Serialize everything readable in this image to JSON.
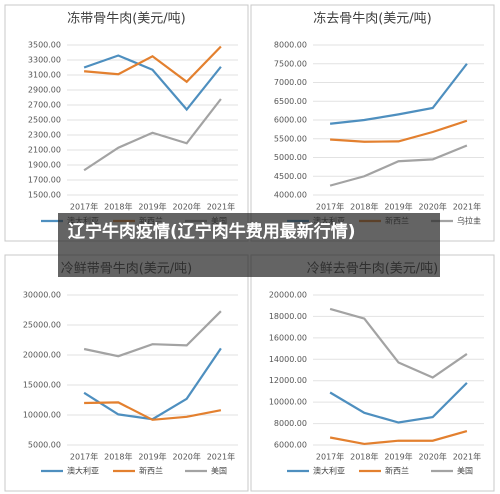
{
  "banner": "辽宁牛肉疫情(辽宁肉牛费用最新行情)",
  "chart_data": [
    {
      "type": "line",
      "title": "冻带骨牛肉(美元/吨)",
      "categories": [
        "2017年",
        "2018年",
        "2019年",
        "2020年",
        "2021年"
      ],
      "ylim": [
        1500,
        3500
      ],
      "yticks": [
        {
          "value": 1500,
          "label": "1500.00"
        },
        {
          "value": 1700,
          "label": "1700.00"
        },
        {
          "value": 1900,
          "label": "1900.00"
        },
        {
          "value": 2100,
          "label": "2100.00"
        },
        {
          "value": 2300,
          "label": "2300.00"
        },
        {
          "value": 2500,
          "label": "2500.00"
        },
        {
          "value": 2700,
          "label": "2700.00"
        },
        {
          "value": 2900,
          "label": "2900.00"
        },
        {
          "value": 3100,
          "label": "3100.00"
        },
        {
          "value": 3300,
          "label": "3300.00"
        },
        {
          "value": 3500,
          "label": "3500.00"
        }
      ],
      "series": [
        {
          "name": "澳大利亚",
          "color": "#4e8fbf",
          "values": [
            3200,
            3360,
            3170,
            2640,
            3210
          ]
        },
        {
          "name": "新西兰",
          "color": "#e3802f",
          "values": [
            3150,
            3110,
            3350,
            3010,
            3480
          ]
        },
        {
          "name": "美国",
          "color": "#a3a3a3",
          "values": [
            1830,
            2130,
            2330,
            2190,
            2780
          ]
        }
      ]
    },
    {
      "type": "line",
      "title": "冻去骨牛肉(美元/吨)",
      "categories": [
        "2017年",
        "2018年",
        "2019年",
        "2020年",
        "2021年"
      ],
      "ylim": [
        4000,
        8000
      ],
      "yticks": [
        {
          "value": 4000,
          "label": "4000.00"
        },
        {
          "value": 4500,
          "label": "4500.00"
        },
        {
          "value": 5000,
          "label": "5000.00"
        },
        {
          "value": 5500,
          "label": "5500.00"
        },
        {
          "value": 6000,
          "label": "6000.00"
        },
        {
          "value": 6500,
          "label": "6500.00"
        },
        {
          "value": 7000,
          "label": "7000.00"
        },
        {
          "value": 7500,
          "label": "7500.00"
        },
        {
          "value": 8000,
          "label": "8000.00"
        }
      ],
      "series": [
        {
          "name": "澳大利亚",
          "color": "#4e8fbf",
          "values": [
            5900,
            6000,
            6150,
            6320,
            7500
          ]
        },
        {
          "name": "新西兰",
          "color": "#e3802f",
          "values": [
            5480,
            5420,
            5430,
            5680,
            5980
          ]
        },
        {
          "name": "乌拉圭",
          "color": "#a3a3a3",
          "values": [
            4250,
            4500,
            4900,
            4950,
            5320
          ]
        }
      ]
    },
    {
      "type": "line",
      "title": "冷鲜带骨牛肉(美元/吨)",
      "categories": [
        "2017年",
        "2018年",
        "2019年",
        "2020年",
        "2021年"
      ],
      "ylim": [
        5000,
        30000
      ],
      "yticks": [
        {
          "value": 5000,
          "label": "5000.00"
        },
        {
          "value": 10000,
          "label": "10000.00"
        },
        {
          "value": 15000,
          "label": "15000.00"
        },
        {
          "value": 20000,
          "label": "20000.00"
        },
        {
          "value": 25000,
          "label": "25000.00"
        },
        {
          "value": 30000,
          "label": "30000.00"
        }
      ],
      "series": [
        {
          "name": "澳大利亚",
          "color": "#4e8fbf",
          "values": [
            13700,
            10100,
            9300,
            12700,
            21100
          ]
        },
        {
          "name": "新西兰",
          "color": "#e3802f",
          "values": [
            12000,
            12100,
            9200,
            9700,
            10800
          ]
        },
        {
          "name": "美国",
          "color": "#a3a3a3",
          "values": [
            21000,
            19800,
            21800,
            21600,
            27300
          ]
        }
      ]
    },
    {
      "type": "line",
      "title": "冷鲜去骨牛肉(美元/吨)",
      "categories": [
        "2017年",
        "2018年",
        "2019年",
        "2020年",
        "2021年"
      ],
      "ylim": [
        6000,
        20000
      ],
      "yticks": [
        {
          "value": 6000,
          "label": "6000.00"
        },
        {
          "value": 8000,
          "label": "8000.00"
        },
        {
          "value": 10000,
          "label": "10000.00"
        },
        {
          "value": 12000,
          "label": "12000.00"
        },
        {
          "value": 14000,
          "label": "14000.00"
        },
        {
          "value": 16000,
          "label": "16000.00"
        },
        {
          "value": 18000,
          "label": "18000.00"
        },
        {
          "value": 20000,
          "label": "20000.00"
        }
      ],
      "series": [
        {
          "name": "澳大利亚",
          "color": "#4e8fbf",
          "values": [
            10900,
            9000,
            8100,
            8600,
            11800
          ]
        },
        {
          "name": "新西兰",
          "color": "#e3802f",
          "values": [
            6700,
            6100,
            6400,
            6400,
            7300
          ]
        },
        {
          "name": "美国",
          "color": "#a3a3a3",
          "values": [
            18700,
            17800,
            13700,
            12300,
            14500
          ]
        }
      ]
    }
  ]
}
